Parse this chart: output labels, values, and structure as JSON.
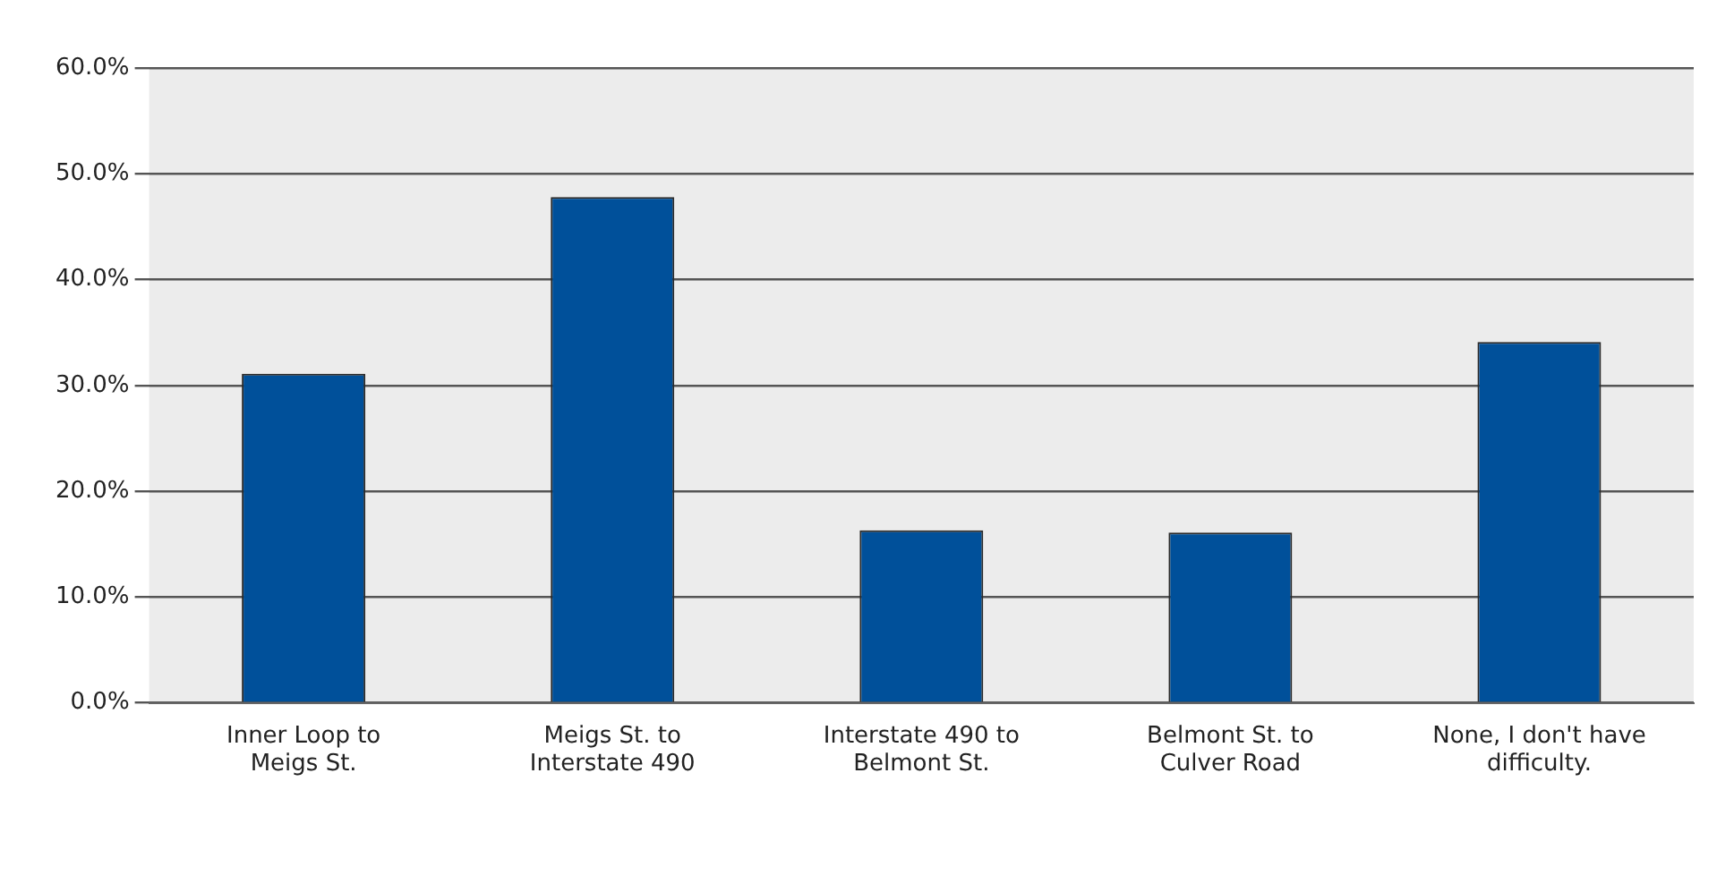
{
  "chart_data": {
    "type": "bar",
    "categories": [
      "Inner Loop to Meigs St.",
      "Meigs St. to Interstate 490",
      "Interstate 490 to Belmont St.",
      "Belmont St. to Culver Road",
      "None, I don't have difficulty."
    ],
    "values": [
      31.1,
      47.8,
      16.3,
      16.1,
      34.1
    ],
    "color": "#00509a",
    "ylim": [
      0,
      60
    ],
    "yticks": [
      {
        "value": 0,
        "label": "0.0%"
      },
      {
        "value": 10,
        "label": "10.0%"
      },
      {
        "value": 20,
        "label": "20.0%"
      },
      {
        "value": 30,
        "label": "30.0%"
      },
      {
        "value": 40,
        "label": "40.0%"
      },
      {
        "value": 50,
        "label": "50.0%"
      },
      {
        "value": 60,
        "label": "60.0%"
      }
    ],
    "grid": "y",
    "legend": false
  }
}
